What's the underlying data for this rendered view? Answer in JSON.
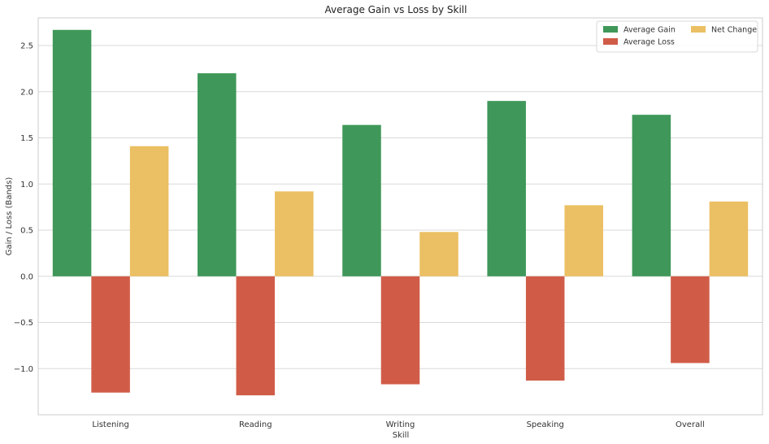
{
  "chart_data": {
    "type": "bar",
    "title": "Average Gain vs Loss by Skill",
    "xlabel": "Skill",
    "ylabel": "Gain / Loss (Bands)",
    "categories": [
      "Listening",
      "Reading",
      "Writing",
      "Speaking",
      "Overall"
    ],
    "series": [
      {
        "name": "Average Gain",
        "color": "#3f9859",
        "values": [
          2.67,
          2.2,
          1.64,
          1.9,
          1.75
        ]
      },
      {
        "name": "Average Loss",
        "color": "#d05c48",
        "values": [
          -1.26,
          -1.29,
          -1.17,
          -1.13,
          -0.94
        ]
      },
      {
        "name": "Net Change",
        "color": "#ebbf63",
        "values": [
          1.41,
          0.92,
          0.48,
          0.77,
          0.81
        ]
      }
    ],
    "ylim": [
      -1.5,
      2.8
    ],
    "yticks": [
      -1.0,
      -0.5,
      0.0,
      0.5,
      1.0,
      1.5,
      2.0,
      2.5
    ],
    "ytick_labels": [
      "−1.0",
      "−0.5",
      "0.0",
      "0.5",
      "1.0",
      "1.5",
      "2.0",
      "2.5"
    ],
    "grid": "horizontal",
    "legend_position": "top-right",
    "legend_columns": 2
  }
}
